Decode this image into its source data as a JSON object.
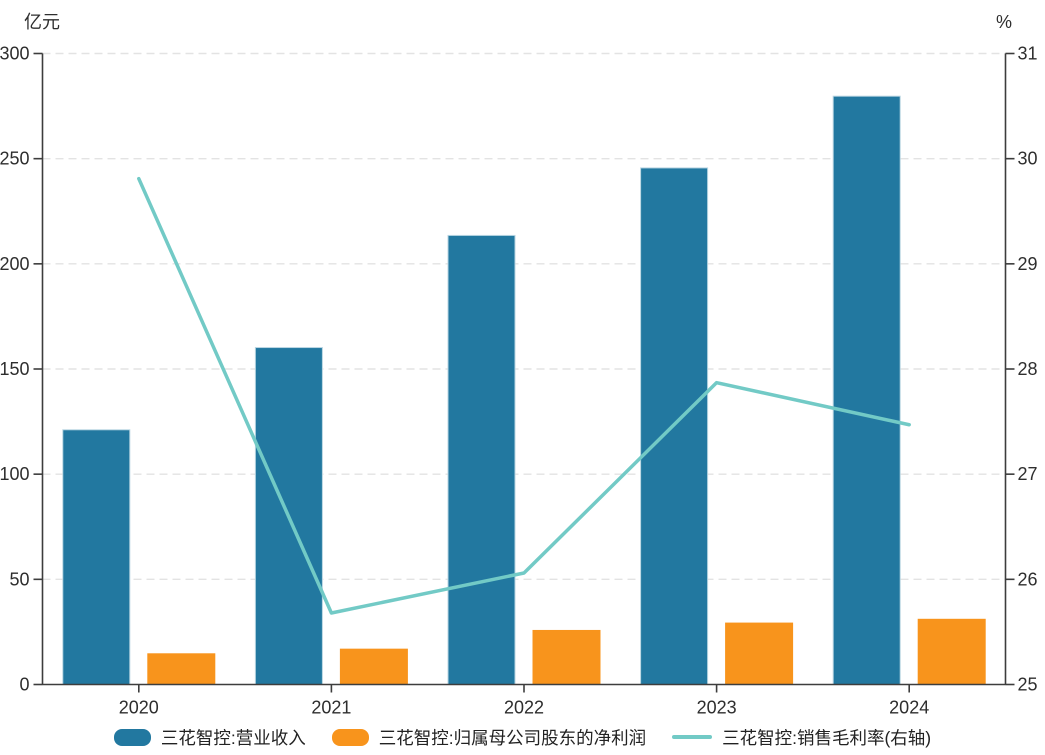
{
  "chart_data": {
    "type": "combo",
    "title": "",
    "categories": [
      "2020",
      "2021",
      "2022",
      "2023",
      "2024"
    ],
    "series": [
      {
        "key": "revenue",
        "name": "三花智控:营业收入",
        "type": "bar",
        "axis": "left",
        "color": "#2278a0",
        "edge_color": "#b8d5e2",
        "values": [
          121.1,
          160.2,
          213.5,
          245.6,
          279.7
        ]
      },
      {
        "key": "net-profit",
        "name": "三花智控:归属母公司股东的净利润",
        "type": "bar",
        "axis": "left",
        "color": "#f8941c",
        "edge_color": "#f8941c",
        "values": [
          14.6,
          16.8,
          25.7,
          29.2,
          31.0
        ]
      },
      {
        "key": "gross-margin",
        "name": "三花智控:销售毛利率(右轴)",
        "type": "line",
        "axis": "right",
        "color": "#72cac6",
        "values": [
          29.81,
          25.68,
          26.06,
          27.87,
          27.47
        ]
      }
    ],
    "left_axis": {
      "title": "亿元",
      "min": 0,
      "max": 300,
      "step": 50,
      "tick_labels": [
        "0",
        "50",
        "100",
        "150",
        "200",
        "250",
        "300"
      ]
    },
    "right_axis": {
      "title": "%",
      "min": 25,
      "max": 31,
      "step": 1,
      "tick_labels": [
        "25",
        "26",
        "27",
        "28",
        "29",
        "30",
        "31"
      ]
    },
    "x_axis": {
      "tick_labels": [
        "2020",
        "2021",
        "2022",
        "2023",
        "2024"
      ]
    },
    "grid": {
      "horizontal": "dashed",
      "color": "#e3e3e3"
    },
    "legend_position": "bottom",
    "axis_color": "#3d3d3d",
    "text_color": "#2e2e2e"
  }
}
